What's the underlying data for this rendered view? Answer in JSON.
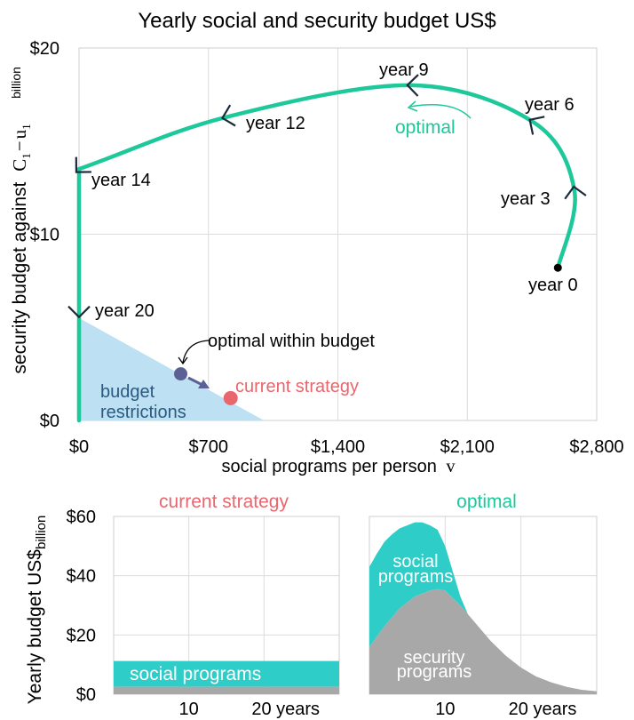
{
  "chart_data": [
    {
      "type": "line",
      "title": "Yearly social and security budget US$",
      "xlabel": "social programs per person",
      "xlabel_symbol": "v",
      "ylabel": "security budget against",
      "ylabel_symbol_c": "C",
      "ylabel_symbol_sub1": "1",
      "ylabel_symbol_minus": "−",
      "ylabel_symbol_u": "u",
      "ylabel_symbol_sub2": "1",
      "y_unit": "billion",
      "xlim": [
        0,
        2800
      ],
      "ylim": [
        0,
        20
      ],
      "x_ticks": [
        0,
        700,
        1400,
        2100,
        2800
      ],
      "x_tick_labels": [
        "$0",
        "$700",
        "$1,400",
        "$2,100",
        "$2,800"
      ],
      "y_ticks": [
        0,
        10,
        20
      ],
      "y_tick_labels": [
        "$0",
        "$10",
        "$20"
      ],
      "colors": {
        "trajectory": "#1dc89a",
        "budget_region": "#bde0f2",
        "current": "#e8676e",
        "optimal_within": "#5b6095",
        "arrow": "#1b2a3a",
        "text_optimal": "#1dc89a",
        "text_budget": "#2a5a80"
      },
      "trajectory": {
        "name": "optimal",
        "points": [
          {
            "year": 0,
            "v": 2590,
            "security": 8.2
          },
          {
            "year": 3,
            "v": 2680,
            "security": 12.3
          },
          {
            "year": 6,
            "v": 2460,
            "security": 16.0
          },
          {
            "year": 9,
            "v": 1800,
            "security": 18.0
          },
          {
            "year": 12,
            "v": 800,
            "security": 16.3
          },
          {
            "year": 14,
            "v": 0,
            "security": 13.5
          },
          {
            "year": 20,
            "v": 0,
            "security": 5.8
          },
          {
            "year": 22,
            "v": 0,
            "security": 0
          }
        ],
        "labeled_years": [
          "year 0",
          "year 3",
          "year 6",
          "year 9",
          "year 12",
          "year 14",
          "year 20"
        ]
      },
      "budget_region": {
        "label_line1": "budget",
        "label_line2": "restrictions",
        "vertices": [
          [
            0,
            0
          ],
          [
            0,
            5.5
          ],
          [
            1000,
            0
          ]
        ]
      },
      "current_strategy": {
        "label": "current strategy",
        "v": 820,
        "security": 1.2
      },
      "optimal_within_budget": {
        "label": "optimal within budget",
        "v": 550,
        "security": 2.5
      },
      "optimal_label": "optimal"
    },
    {
      "type": "area",
      "title": "current strategy",
      "ylabel": "Yearly budget US$",
      "y_unit": "billion",
      "ylim": [
        0,
        60
      ],
      "xlim": [
        0,
        30
      ],
      "y_ticks": [
        0,
        20,
        40,
        60
      ],
      "y_tick_labels": [
        "$0",
        "$20",
        "$40",
        "$60"
      ],
      "x_tick_labels": [
        "10",
        "20 years"
      ],
      "series": [
        {
          "name": "security programs",
          "color": "#a8a8a8",
          "x": [
            0,
            30
          ],
          "values": [
            2.5,
            2.5
          ]
        },
        {
          "name": "social programs",
          "color": "#2fcdc7",
          "x": [
            0,
            30
          ],
          "values": [
            8.7,
            8.7
          ]
        }
      ]
    },
    {
      "type": "area",
      "title": "optimal",
      "ylim": [
        0,
        60
      ],
      "xlim": [
        0,
        30
      ],
      "y_ticks": [
        0,
        20,
        40,
        60
      ],
      "x_tick_labels": [
        "10",
        "20 years"
      ],
      "series": [
        {
          "name": "security programs",
          "label_line1": "security",
          "label_line2": "programs",
          "color": "#a8a8a8",
          "x": [
            0,
            2,
            4,
            6,
            8,
            9,
            10,
            12,
            14,
            16,
            18,
            20,
            22,
            24,
            26,
            28,
            30
          ],
          "values": [
            16,
            23,
            29,
            33,
            35,
            35.5,
            35,
            30,
            24,
            18,
            13,
            9,
            6,
            4,
            2.5,
            1.5,
            1
          ]
        },
        {
          "name": "social programs",
          "label_line1": "social",
          "label_line2": "programs",
          "color": "#2fcdc7",
          "x": [
            0,
            1,
            2,
            3,
            4,
            5,
            6,
            7,
            8,
            9,
            10,
            11,
            12,
            13
          ],
          "values": [
            27,
            28,
            28.5,
            28,
            27,
            26,
            25,
            24,
            22,
            20,
            15,
            9,
            3,
            0
          ]
        }
      ]
    }
  ]
}
